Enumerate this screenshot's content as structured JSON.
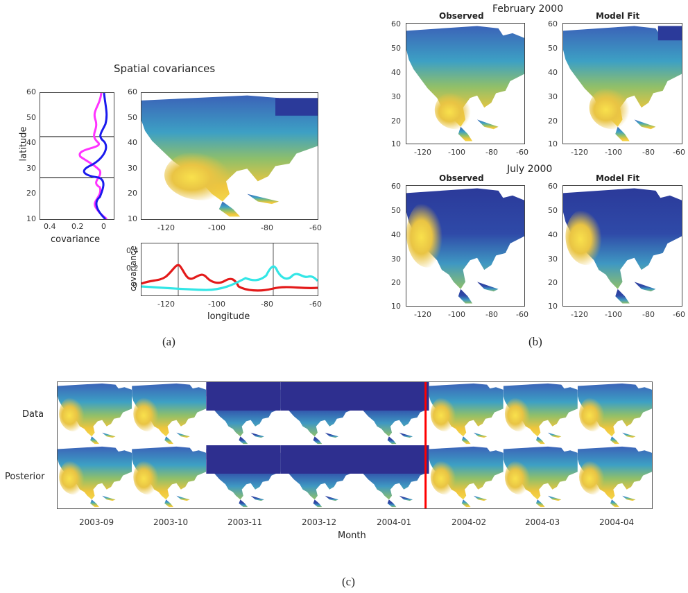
{
  "panel_a": {
    "title": "Spatial covariances",
    "left_profile": {
      "ylabel": "latitude",
      "xlabel": "covariance",
      "yticks": [
        "60",
        "50",
        "40",
        "30",
        "20",
        "10"
      ],
      "xticks": [
        "0.4",
        "0.2",
        "0"
      ]
    },
    "map": {
      "yticks": [
        "60",
        "50",
        "40",
        "30",
        "20",
        "10"
      ],
      "xticks": [
        "-120",
        "-100",
        "-80",
        "-60"
      ]
    },
    "bottom_profile": {
      "ylabel": "covariance",
      "xlabel": "longitude",
      "yticks": [
        "0.4",
        "0.2",
        "0"
      ],
      "xticks": [
        "-120",
        "-100",
        "-80",
        "-60"
      ]
    },
    "caption": "(a)"
  },
  "panel_b": {
    "row1_title": "February 2000",
    "row2_title": "July 2000",
    "observed_label": "Observed",
    "model_label": "Model Fit",
    "yticks": [
      "60",
      "50",
      "40",
      "30",
      "20",
      "10"
    ],
    "xticks": [
      "-120",
      "-100",
      "-80",
      "-60"
    ],
    "caption": "(b)"
  },
  "panel_c": {
    "row_labels": [
      "Data",
      "Posterior"
    ],
    "months": [
      "2003-09",
      "2003-10",
      "2003-11",
      "2003-12",
      "2004-01",
      "2004-02",
      "2004-03",
      "2004-04"
    ],
    "xlabel": "Month",
    "caption": "(c)"
  },
  "colors": {
    "magenta": "#ff33ff",
    "blue": "#1a1aee",
    "red": "#e31a1a",
    "cyan": "#33e6e6",
    "divider": "#ff0000"
  }
}
